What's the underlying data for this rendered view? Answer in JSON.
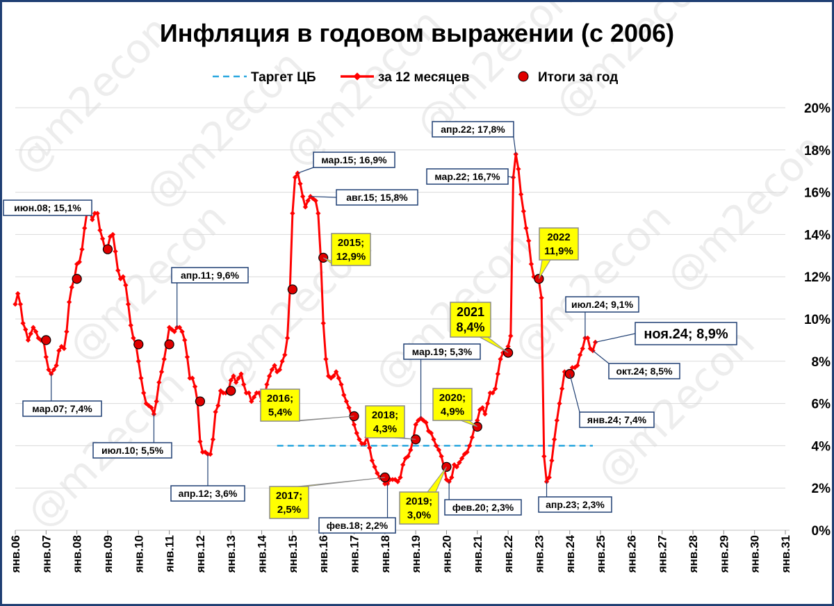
{
  "chart_data": {
    "type": "line",
    "title": "Инфляция в годовом выражении (с 2006)",
    "legend": {
      "placement": "top",
      "items": [
        {
          "label": "Таргет ЦБ",
          "style": "dashed",
          "color": "#2aa7df"
        },
        {
          "label": "за 12 месяцев",
          "style": "line-markers",
          "color": "#ff0000"
        },
        {
          "label": "Итоги за год",
          "style": "dot",
          "color": "#e00000"
        }
      ]
    },
    "y_axis": {
      "position": "right",
      "ylim": [
        0,
        20
      ],
      "ticks": [
        0,
        2,
        4,
        6,
        8,
        10,
        12,
        14,
        16,
        18,
        20
      ],
      "tick_labels": [
        "0%",
        "2%",
        "4%",
        "6%",
        "8%",
        "10%",
        "12%",
        "14%",
        "16%",
        "18%",
        "20%"
      ]
    },
    "x_axis": {
      "xlim": [
        2006.0,
        2031.0
      ],
      "ticks": [
        2006,
        2007,
        2008,
        2009,
        2010,
        2011,
        2012,
        2013,
        2014,
        2015,
        2016,
        2017,
        2018,
        2019,
        2020,
        2021,
        2022,
        2023,
        2024,
        2025,
        2026,
        2027,
        2028,
        2029,
        2030,
        2031
      ],
      "tick_labels": [
        "янв.06",
        "янв.07",
        "янв.08",
        "янв.09",
        "янв.10",
        "янв.11",
        "янв.12",
        "янв.13",
        "янв.14",
        "янв.15",
        "янв.16",
        "янв.17",
        "янв.18",
        "янв.19",
        "янв.20",
        "янв.21",
        "янв.22",
        "янв.23",
        "янв.24",
        "янв.25",
        "янв.26",
        "янв.27",
        "янв.28",
        "янв.29",
        "янв.30",
        "янв.31"
      ],
      "label_orientation": "vertical"
    },
    "grid": true,
    "series": [
      {
        "name": "за 12 месяцев",
        "color": "#ff0000",
        "x": [
          2006.0,
          2006.083,
          2006.167,
          2006.25,
          2006.333,
          2006.417,
          2006.5,
          2006.583,
          2006.667,
          2006.75,
          2006.833,
          2006.917,
          2007.0,
          2007.083,
          2007.167,
          2007.25,
          2007.333,
          2007.417,
          2007.5,
          2007.583,
          2007.667,
          2007.75,
          2007.833,
          2007.917,
          2008.0,
          2008.083,
          2008.167,
          2008.25,
          2008.333,
          2008.417,
          2008.5,
          2008.583,
          2008.667,
          2008.75,
          2008.833,
          2008.917,
          2009.0,
          2009.083,
          2009.167,
          2009.25,
          2009.333,
          2009.417,
          2009.5,
          2009.583,
          2009.667,
          2009.75,
          2009.833,
          2009.917,
          2010.0,
          2010.083,
          2010.167,
          2010.25,
          2010.333,
          2010.417,
          2010.5,
          2010.583,
          2010.667,
          2010.75,
          2010.833,
          2010.917,
          2011.0,
          2011.083,
          2011.167,
          2011.25,
          2011.333,
          2011.417,
          2011.5,
          2011.583,
          2011.667,
          2011.75,
          2011.833,
          2011.917,
          2012.0,
          2012.083,
          2012.167,
          2012.25,
          2012.333,
          2012.417,
          2012.5,
          2012.583,
          2012.667,
          2012.75,
          2012.833,
          2012.917,
          2013.0,
          2013.083,
          2013.167,
          2013.25,
          2013.333,
          2013.417,
          2013.5,
          2013.583,
          2013.667,
          2013.75,
          2013.833,
          2013.917,
          2014.0,
          2014.083,
          2014.167,
          2014.25,
          2014.333,
          2014.417,
          2014.5,
          2014.583,
          2014.667,
          2014.75,
          2014.833,
          2014.917,
          2015.0,
          2015.083,
          2015.167,
          2015.25,
          2015.333,
          2015.417,
          2015.5,
          2015.583,
          2015.667,
          2015.75,
          2015.833,
          2015.917,
          2016.0,
          2016.083,
          2016.167,
          2016.25,
          2016.333,
          2016.417,
          2016.5,
          2016.583,
          2016.667,
          2016.75,
          2016.833,
          2016.917,
          2017.0,
          2017.083,
          2017.167,
          2017.25,
          2017.333,
          2017.417,
          2017.5,
          2017.583,
          2017.667,
          2017.75,
          2017.833,
          2017.917,
          2018.0,
          2018.083,
          2018.167,
          2018.25,
          2018.333,
          2018.417,
          2018.5,
          2018.583,
          2018.667,
          2018.75,
          2018.833,
          2018.917,
          2019.0,
          2019.083,
          2019.167,
          2019.25,
          2019.333,
          2019.417,
          2019.5,
          2019.583,
          2019.667,
          2019.75,
          2019.833,
          2019.917,
          2020.0,
          2020.083,
          2020.167,
          2020.25,
          2020.333,
          2020.417,
          2020.5,
          2020.583,
          2020.667,
          2020.75,
          2020.833,
          2020.917,
          2021.0,
          2021.083,
          2021.167,
          2021.25,
          2021.333,
          2021.417,
          2021.5,
          2021.583,
          2021.667,
          2021.75,
          2021.833,
          2021.917,
          2022.0,
          2022.083,
          2022.167,
          2022.25,
          2022.333,
          2022.417,
          2022.5,
          2022.583,
          2022.667,
          2022.75,
          2022.833,
          2022.917,
          2023.0,
          2023.083,
          2023.167,
          2023.25,
          2023.333,
          2023.417,
          2023.5,
          2023.583,
          2023.667,
          2023.75,
          2023.833,
          2023.917,
          2024.0,
          2024.083,
          2024.167,
          2024.25,
          2024.333,
          2024.417,
          2024.5,
          2024.583,
          2024.667,
          2024.75,
          2024.833
        ],
        "values": [
          10.7,
          11.2,
          10.7,
          9.8,
          9.5,
          9.0,
          9.3,
          9.6,
          9.4,
          9.1,
          9.0,
          9.0,
          8.2,
          7.6,
          7.4,
          7.6,
          7.8,
          8.5,
          8.7,
          8.6,
          9.4,
          10.8,
          11.5,
          11.9,
          12.6,
          12.7,
          13.3,
          14.3,
          15.1,
          15.1,
          14.7,
          15.0,
          15.0,
          14.2,
          13.8,
          13.3,
          13.4,
          13.9,
          14.0,
          13.2,
          12.3,
          11.9,
          12.0,
          11.6,
          10.7,
          9.7,
          9.1,
          8.8,
          8.0,
          7.2,
          6.5,
          6.0,
          5.9,
          5.8,
          5.5,
          6.1,
          7.0,
          7.5,
          8.1,
          8.8,
          9.6,
          9.5,
          9.4,
          9.6,
          9.6,
          9.4,
          9.0,
          8.2,
          7.2,
          7.2,
          6.8,
          6.1,
          4.2,
          3.7,
          3.7,
          3.6,
          3.6,
          4.3,
          5.6,
          5.9,
          6.6,
          6.5,
          6.5,
          6.6,
          7.1,
          7.3,
          7.0,
          7.2,
          7.4,
          6.9,
          6.5,
          6.5,
          6.1,
          6.3,
          6.5,
          6.5,
          6.1,
          6.2,
          6.9,
          7.3,
          7.6,
          7.8,
          7.5,
          7.6,
          8.0,
          8.3,
          9.1,
          11.4,
          15.0,
          16.7,
          16.9,
          16.4,
          15.8,
          15.3,
          15.6,
          15.8,
          15.7,
          15.6,
          15.0,
          12.9,
          9.8,
          8.1,
          7.3,
          7.2,
          7.3,
          7.5,
          7.2,
          6.9,
          6.4,
          6.1,
          5.8,
          5.4,
          5.0,
          4.6,
          4.3,
          4.1,
          4.1,
          4.4,
          3.9,
          3.3,
          3.0,
          2.7,
          2.5,
          2.5,
          2.2,
          2.2,
          2.4,
          2.4,
          2.4,
          2.3,
          2.5,
          3.1,
          3.4,
          3.5,
          3.8,
          4.3,
          5.0,
          5.2,
          5.3,
          5.2,
          5.1,
          4.7,
          4.6,
          4.3,
          4.0,
          3.8,
          3.5,
          3.0,
          2.4,
          2.3,
          2.5,
          3.1,
          3.0,
          3.2,
          3.4,
          3.6,
          3.7,
          4.0,
          4.4,
          4.9,
          5.2,
          5.7,
          5.8,
          5.5,
          6.0,
          6.5,
          6.5,
          6.7,
          7.4,
          8.1,
          8.4,
          8.4,
          8.7,
          9.2,
          16.7,
          17.8,
          17.1,
          15.9,
          15.1,
          14.3,
          13.7,
          12.6,
          12.0,
          11.9,
          11.8,
          11.0,
          3.5,
          2.3,
          2.5,
          3.3,
          4.3,
          5.2,
          6.0,
          6.7,
          7.5,
          7.4,
          7.4,
          7.7,
          7.7,
          7.8,
          8.3,
          8.6,
          9.1,
          9.1,
          8.6,
          8.5,
          8.9
        ]
      },
      {
        "name": "Итоги за год",
        "color": "#e00000",
        "x": [
          2007.0,
          2008.0,
          2009.0,
          2010.0,
          2011.0,
          2012.0,
          2013.0,
          2015.0,
          2016.0,
          2017.0,
          2018.0,
          2019.0,
          2020.0,
          2021.0,
          2022.0,
          2023.0,
          2024.0
        ],
        "values": [
          9.0,
          11.9,
          13.3,
          8.8,
          8.8,
          6.1,
          6.6,
          11.4,
          12.9,
          5.4,
          2.5,
          4.3,
          3.0,
          4.9,
          8.4,
          11.9,
          7.4
        ]
      },
      {
        "name": "Таргет ЦБ",
        "color": "#2aa7df",
        "x": [
          2014.5,
          2024.75
        ],
        "values": [
          4.0,
          4.0
        ]
      }
    ],
    "annotations": [
      {
        "text": "июн.08; 15,1%",
        "x": 2008.417,
        "y": 15.1,
        "style": "box"
      },
      {
        "text": "мар.07; 7,4%",
        "x": 2007.167,
        "y": 7.4,
        "style": "box"
      },
      {
        "text": "июл.10; 5,5%",
        "x": 2010.5,
        "y": 5.5,
        "style": "box"
      },
      {
        "text": "апр.11; 9,6%",
        "x": 2011.25,
        "y": 9.6,
        "style": "box"
      },
      {
        "text": "апр.12; 3,6%",
        "x": 2012.25,
        "y": 3.6,
        "style": "box"
      },
      {
        "text": "мар.15; 16,9%",
        "x": 2015.167,
        "y": 16.9,
        "style": "box"
      },
      {
        "text": "авг.15; 15,8%",
        "x": 2015.583,
        "y": 15.8,
        "style": "box"
      },
      {
        "text": "фев.18; 2,2%",
        "x": 2018.083,
        "y": 2.2,
        "style": "box"
      },
      {
        "text": "мар.19; 5,3%",
        "x": 2019.167,
        "y": 5.3,
        "style": "box"
      },
      {
        "text": "фев.20; 2,3%",
        "x": 2020.083,
        "y": 2.3,
        "style": "box"
      },
      {
        "text": "апр.22; 17,8%",
        "x": 2022.25,
        "y": 17.8,
        "style": "box"
      },
      {
        "text": "мар.22; 16,7%",
        "x": 2022.167,
        "y": 16.7,
        "style": "box"
      },
      {
        "text": "апр.23; 2,3%",
        "x": 2023.25,
        "y": 2.3,
        "style": "box"
      },
      {
        "text": "июл.24; 9,1%",
        "x": 2024.5,
        "y": 9.1,
        "style": "box"
      },
      {
        "text": "окт.24; 8,5%",
        "x": 2024.75,
        "y": 8.5,
        "style": "box"
      },
      {
        "text": "янв.24; 7,4%",
        "x": 2024.0,
        "y": 7.4,
        "style": "box"
      },
      {
        "text": "ноя.24; 8,9%",
        "x": 2024.833,
        "y": 8.9,
        "style": "box-large"
      }
    ],
    "year_callouts": [
      {
        "line1": "2015;",
        "line2": "12,9%",
        "x": 2016.0,
        "y": 12.9,
        "color": "#ffff00"
      },
      {
        "line1": "2016;",
        "line2": "5,4%",
        "x": 2017.0,
        "y": 5.4,
        "color": "#ffff00"
      },
      {
        "line1": "2017;",
        "line2": "2,5%",
        "x": 2018.0,
        "y": 2.5,
        "color": "#ffff00"
      },
      {
        "line1": "2018;",
        "line2": "4,3%",
        "x": 2019.0,
        "y": 4.3,
        "color": "#ffff00"
      },
      {
        "line1": "2019;",
        "line2": "3,0%",
        "x": 2020.0,
        "y": 3.0,
        "color": "#ffff00"
      },
      {
        "line1": "2020;",
        "line2": "4,9%",
        "x": 2021.0,
        "y": 4.9,
        "color": "#ffff00"
      },
      {
        "line1": "2021",
        "line2": "8,4%",
        "x": 2022.0,
        "y": 8.4,
        "color": "#ffff00"
      },
      {
        "line1": "2022",
        "line2": "11,9%",
        "x": 2023.0,
        "y": 11.9,
        "color": "#ffff00"
      }
    ],
    "watermark": "@m2econ",
    "frame_color": "#1f3f73"
  }
}
